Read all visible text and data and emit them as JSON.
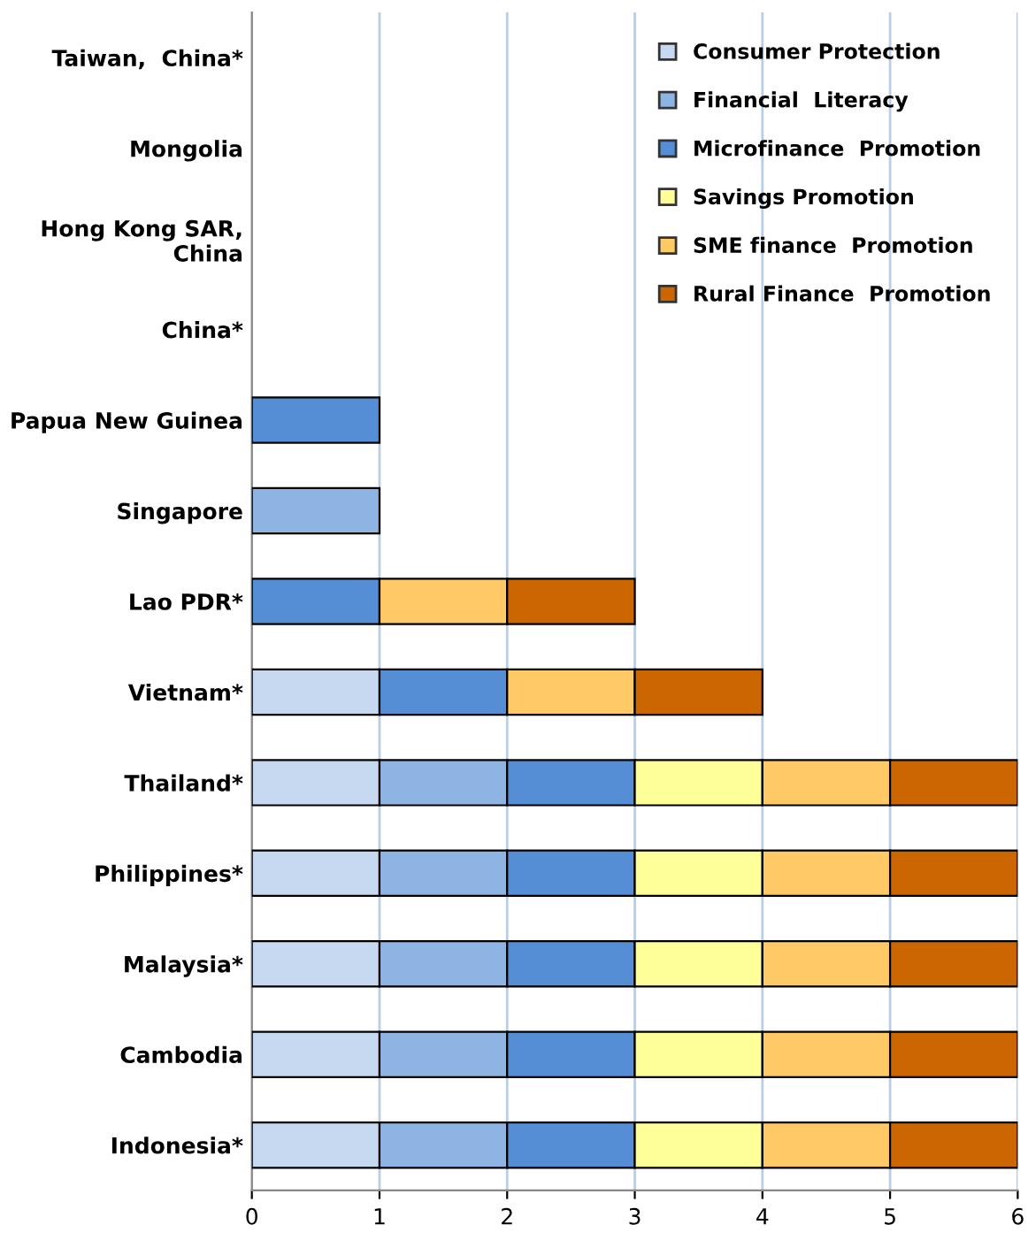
{
  "chart_data": {
    "type": "bar",
    "orientation": "horizontal",
    "stacked": true,
    "categories": [
      "Taiwan,  China*",
      "Mongolia",
      "Hong Kong SAR,\nChina",
      "China*",
      "Papua New Guinea",
      "Singapore",
      "Lao PDR*",
      "Vietnam*",
      "Thailand*",
      "Philippines*",
      "Malaysia*",
      "Cambodia",
      "Indonesia*"
    ],
    "series": [
      {
        "name": "Consumer Protection",
        "color": "#c6d9f1",
        "values": [
          null,
          null,
          null,
          null,
          null,
          null,
          null,
          1,
          1,
          1,
          1,
          1,
          1
        ]
      },
      {
        "name": "Financial  Literacy",
        "color": "#8db4e2",
        "values": [
          null,
          null,
          null,
          null,
          null,
          1,
          null,
          null,
          1,
          1,
          1,
          1,
          1
        ]
      },
      {
        "name": "Microfinance  Promotion",
        "color": "#558ed5",
        "values": [
          null,
          null,
          null,
          null,
          1,
          null,
          1,
          1,
          1,
          1,
          1,
          1,
          1
        ]
      },
      {
        "name": "Savings Promotion",
        "color": "#ffff99",
        "values": [
          null,
          null,
          null,
          null,
          null,
          null,
          null,
          null,
          1,
          1,
          1,
          1,
          1
        ]
      },
      {
        "name": "SME finance  Promotion",
        "color": "#ffc966",
        "values": [
          null,
          null,
          null,
          null,
          null,
          null,
          1,
          1,
          1,
          1,
          1,
          1,
          1
        ]
      },
      {
        "name": "Rural Finance  Promotion",
        "color": "#cc6600",
        "values": [
          null,
          null,
          null,
          null,
          null,
          null,
          1,
          1,
          1,
          1,
          1,
          1,
          1
        ]
      }
    ],
    "xlim": [
      0,
      6
    ],
    "xticks": [
      0,
      1,
      2,
      3,
      4,
      5,
      6
    ],
    "grid": "x",
    "legend": "top right"
  }
}
